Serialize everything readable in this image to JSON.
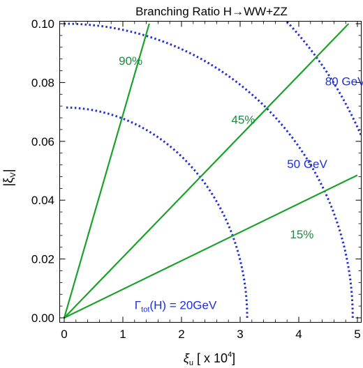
{
  "chart_data": {
    "type": "line",
    "title": "Branching Ratio H→WW+ZZ",
    "xlabel": {
      "symbol": "ξ",
      "subscript": "u",
      "rest": " [ x 10",
      "superscript": "4",
      "close": "]"
    },
    "ylabel": {
      "prefix": "|ξ",
      "subscript": "V",
      "suffix": "|"
    },
    "xlim": [
      0,
      5
    ],
    "ylim": [
      0,
      0.1
    ],
    "x_ticks": [
      "0",
      "1",
      "2",
      "3",
      "4",
      "5"
    ],
    "y_ticks": [
      "0.00",
      "0.02",
      "0.04",
      "0.06",
      "0.08",
      "0.10"
    ],
    "grid": false,
    "colors": {
      "branching": "#1aa12a",
      "width": "#1f2ee0",
      "branching_text": "#1a8a3e"
    },
    "branching_lines": [
      {
        "label": "90%",
        "x": [
          0,
          1.45
        ],
        "y": [
          0,
          0.1
        ],
        "label_at": [
          0.93,
          0.086
        ]
      },
      {
        "label": "45%",
        "x": [
          0,
          4.85
        ],
        "y": [
          0,
          0.1
        ],
        "label_at": [
          2.85,
          0.066
        ]
      },
      {
        "label": "15%",
        "x": [
          0,
          5.0
        ],
        "y": [
          0,
          0.0485
        ],
        "label_at": [
          3.85,
          0.027
        ]
      }
    ],
    "width_contours": [
      {
        "label": "80 GeV",
        "radius_x": 5.7,
        "radius_y": 0.135,
        "label_at": [
          4.45,
          0.079
        ]
      },
      {
        "label": "50 GeV",
        "radius_x": 4.92,
        "radius_y": 0.1,
        "label_at": [
          3.8,
          0.051
        ]
      },
      {
        "label_main": "Γ",
        "label_sub": "tot",
        "label_rest": "(H) = 20GeV",
        "radius_x": 3.12,
        "radius_y": 0.0715,
        "label_at": [
          1.2,
          0.003
        ]
      }
    ]
  }
}
